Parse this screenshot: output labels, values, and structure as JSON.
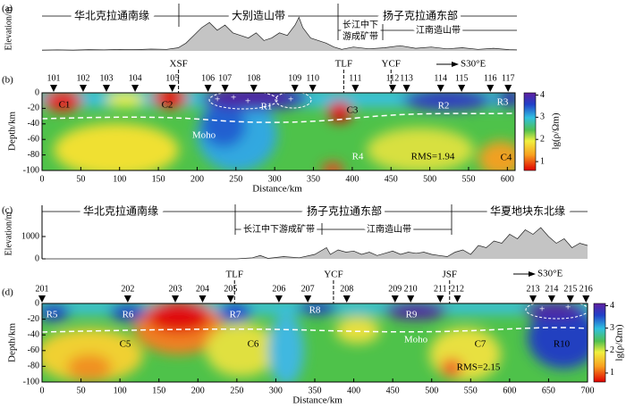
{
  "panel_a": {
    "label": "(a)",
    "ylabel": "Elevation/m",
    "zones": [
      "华北克拉通南缘",
      "大别造山带",
      "扬子克拉通东部"
    ],
    "subzones": [
      {
        "lines": [
          "长江中下",
          "游成矿带"
        ]
      },
      {
        "lines": [
          "江南造山带"
        ]
      }
    ],
    "xlim": [
      0,
      610
    ],
    "ylim": [
      0,
      1800
    ],
    "x": [
      0,
      20,
      40,
      60,
      80,
      100,
      120,
      140,
      160,
      175,
      185,
      195,
      205,
      215,
      225,
      235,
      245,
      255,
      265,
      275,
      285,
      295,
      305,
      315,
      325,
      330,
      335,
      345,
      355,
      365,
      375,
      385,
      400,
      420,
      440,
      460,
      480,
      500,
      520,
      540,
      560,
      580,
      600,
      610
    ],
    "elevation": [
      30,
      40,
      30,
      50,
      40,
      60,
      50,
      70,
      60,
      120,
      300,
      600,
      900,
      1100,
      800,
      1000,
      700,
      600,
      500,
      700,
      400,
      500,
      700,
      600,
      1000,
      1300,
      900,
      500,
      400,
      300,
      150,
      60,
      150,
      80,
      120,
      200,
      100,
      150,
      80,
      120,
      60,
      100,
      50,
      40
    ]
  },
  "panel_b": {
    "label": "(b)",
    "ylabel": "Depth/km",
    "xlabel": "Distance/km",
    "xlim": [
      0,
      610
    ],
    "ylim": [
      -100,
      0
    ],
    "xticks": [
      0,
      50,
      100,
      150,
      200,
      250,
      300,
      350,
      400,
      450,
      500,
      550,
      600
    ],
    "yticks": [
      0,
      -20,
      -40,
      -60,
      -80,
      -100
    ],
    "stations": {
      "names": [
        "101",
        "102",
        "103",
        "104",
        "105",
        "106",
        "107",
        "108",
        "109",
        "110",
        "111",
        "112",
        "113",
        "114",
        "115",
        "116",
        "117"
      ],
      "x": [
        15,
        53,
        83,
        120,
        168,
        214,
        236,
        273,
        326,
        349,
        404,
        452,
        470,
        514,
        541,
        578,
        601
      ]
    },
    "faults": {
      "names": [
        "XSF",
        "TLF",
        "YCF"
      ],
      "x": [
        176,
        389,
        450
      ]
    },
    "direction": "S30°E",
    "anomalies": [
      "C1",
      "C2",
      "R1",
      "C3",
      "R2",
      "R3",
      "R4",
      "C4"
    ],
    "moho": "Moho",
    "rms": "RMS=1.94",
    "colorbar": {
      "label": "lg(ρ/Ωm)",
      "lim": [
        0.6,
        4.1
      ],
      "ticks": [
        1,
        2,
        3,
        4
      ]
    }
  },
  "panel_c": {
    "label": "(c)",
    "ylabel": "Elevation/m",
    "zones": [
      "华北克拉通南缘",
      "扬子克拉通东部",
      "华夏地块东北缘"
    ],
    "subzones": [
      "长江中下游成矿带",
      "江南造山带"
    ],
    "xlim": [
      0,
      700
    ],
    "ylim": [
      0,
      2400
    ],
    "yticks": [
      0,
      1000
    ],
    "x": [
      0,
      100,
      200,
      250,
      270,
      280,
      290,
      310,
      330,
      350,
      365,
      370,
      380,
      390,
      400,
      410,
      420,
      430,
      440,
      450,
      460,
      470,
      480,
      490,
      500,
      510,
      520,
      530,
      540,
      550,
      560,
      570,
      580,
      590,
      600,
      610,
      620,
      630,
      640,
      650,
      660,
      670,
      680,
      690,
      700
    ],
    "elevation": [
      0,
      0,
      0,
      0,
      50,
      150,
      20,
      100,
      50,
      200,
      500,
      200,
      400,
      300,
      350,
      200,
      300,
      150,
      250,
      350,
      200,
      300,
      250,
      300,
      200,
      150,
      100,
      300,
      400,
      200,
      600,
      500,
      800,
      700,
      1100,
      900,
      1300,
      1100,
      1400,
      1000,
      700,
      900,
      500,
      700,
      600
    ]
  },
  "panel_d": {
    "label": "(d)",
    "ylabel": "Depth/km",
    "xlabel": "Distance/km",
    "xlim": [
      0,
      700
    ],
    "ylim": [
      -100,
      0
    ],
    "xticks": [
      0,
      50,
      100,
      150,
      200,
      250,
      300,
      350,
      400,
      450,
      500,
      550,
      600,
      650,
      700
    ],
    "yticks": [
      0,
      -20,
      -40,
      -60,
      -80,
      -100
    ],
    "stations": {
      "names": [
        "201",
        "202",
        "203",
        "204",
        "205",
        "206",
        "207",
        "208",
        "209",
        "210",
        "211",
        "212",
        "213",
        "214",
        "215",
        "216"
      ],
      "x": [
        0,
        110,
        171,
        206,
        242,
        304,
        341,
        391,
        453,
        473,
        511,
        533,
        630,
        654,
        678,
        698
      ]
    },
    "faults": {
      "names": [
        "TLF",
        "YCF",
        "JSF"
      ],
      "x": [
        247,
        374,
        523
      ]
    },
    "direction": "S30°E",
    "anomalies": [
      "R5",
      "R6",
      "R7",
      "R8",
      "R9",
      "C5",
      "C6",
      "C7",
      "R10"
    ],
    "moho": "Moho",
    "rms": "RMS=2.15",
    "colorbar": {
      "label": "lg(ρ/Ωm)",
      "lim": [
        0.6,
        4.1
      ],
      "ticks": [
        1,
        2,
        3,
        4
      ]
    }
  }
}
